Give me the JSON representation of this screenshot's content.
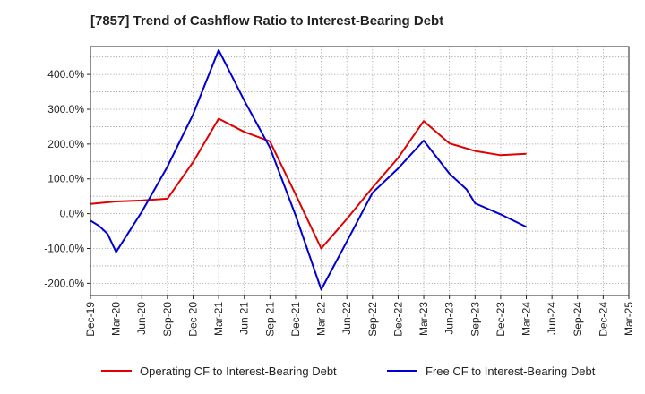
{
  "page": {
    "title": "[7857]  Trend of Cashflow Ratio to Interest-Bearing Debt"
  },
  "chart_data": {
    "type": "line",
    "title": "[7857]  Trend of Cashflow Ratio to Interest-Bearing Debt",
    "xlabel": "",
    "ylabel": "",
    "x_tick_labels": [
      "Dec-19",
      "Mar-20",
      "Jun-20",
      "Sep-20",
      "Dec-20",
      "Mar-21",
      "Jun-21",
      "Sep-21",
      "Dec-21",
      "Mar-22",
      "Jun-22",
      "Sep-22",
      "Dec-22",
      "Mar-23",
      "Jun-23",
      "Sep-23",
      "Dec-23",
      "Mar-24",
      "Jun-24",
      "Sep-24",
      "Dec-24",
      "Mar-25"
    ],
    "y_ticks": [
      -200,
      -100,
      0,
      100,
      200,
      300,
      400
    ],
    "y_tick_labels": [
      "-200.0%",
      "-100.0%",
      "0.0%",
      "100.0%",
      "200.0%",
      "300.0%",
      "400.0%"
    ],
    "ylim": [
      -235,
      480
    ],
    "grid": true,
    "legend_position": "bottom",
    "series": [
      {
        "name": "Operating CF to Interest-Bearing Debt",
        "color": "#e00000",
        "x": [
          "Dec-19",
          "Mar-20",
          "Jun-20",
          "Sep-20",
          "Dec-20",
          "Mar-21",
          "Jun-21",
          "Sep-21",
          "Dec-21",
          "Mar-22",
          "Jun-22",
          "Sep-22",
          "Dec-22",
          "Mar-23",
          "Jun-23",
          "Sep-23",
          "Dec-23",
          "Mar-24"
        ],
        "values": [
          28,
          35,
          38,
          43,
          148,
          273,
          235,
          208,
          55,
          -100,
          -15,
          75,
          160,
          266,
          202,
          180,
          168,
          172
        ]
      },
      {
        "name": "Free CF to Interest-Bearing Debt",
        "color": "#0000d0",
        "x": [
          "Dec-19",
          "Jan-20",
          "Feb-20",
          "Mar-20",
          "Jun-20",
          "Sep-20",
          "Dec-20",
          "Mar-21",
          "Jun-21",
          "Sep-21",
          "Dec-21",
          "Mar-22",
          "Jun-22",
          "Sep-22",
          "Dec-22",
          "Mar-23",
          "Jun-23",
          "Aug-23",
          "Sep-23",
          "Dec-23",
          "Mar-24"
        ],
        "values": [
          -20,
          -35,
          -58,
          -110,
          5,
          135,
          285,
          470,
          325,
          190,
          -5,
          -218,
          -80,
          60,
          130,
          210,
          115,
          70,
          30,
          -2,
          -38
        ]
      }
    ]
  }
}
